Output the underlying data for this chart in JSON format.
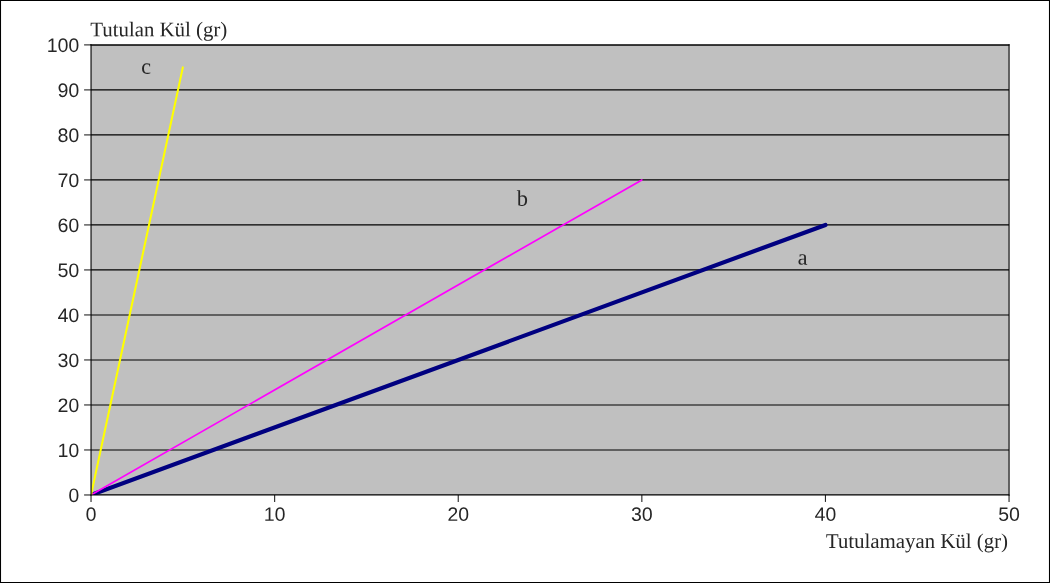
{
  "chart_data": {
    "type": "line",
    "xlabel": "Tutulamayan Kül (gr)",
    "ylabel": "Tutulan Kül (gr)",
    "xlim": [
      0,
      50
    ],
    "xticks": [
      0,
      10,
      20,
      30,
      40,
      50
    ],
    "ylim": [
      0,
      100
    ],
    "yticks": [
      0,
      10,
      20,
      30,
      40,
      50,
      60,
      70,
      80,
      90,
      100
    ],
    "grid": "y",
    "legend": false,
    "marker": "none",
    "line_style": "solid",
    "series": [
      {
        "name": "a",
        "color": "#000080",
        "x": [
          0,
          40
        ],
        "values": [
          0,
          60
        ]
      },
      {
        "name": "b",
        "color": "#ff00ff",
        "x": [
          0,
          30
        ],
        "values": [
          0,
          70
        ]
      },
      {
        "name": "c",
        "color": "#ffff00",
        "x": [
          0,
          5
        ],
        "values": [
          0,
          95
        ]
      }
    ]
  }
}
